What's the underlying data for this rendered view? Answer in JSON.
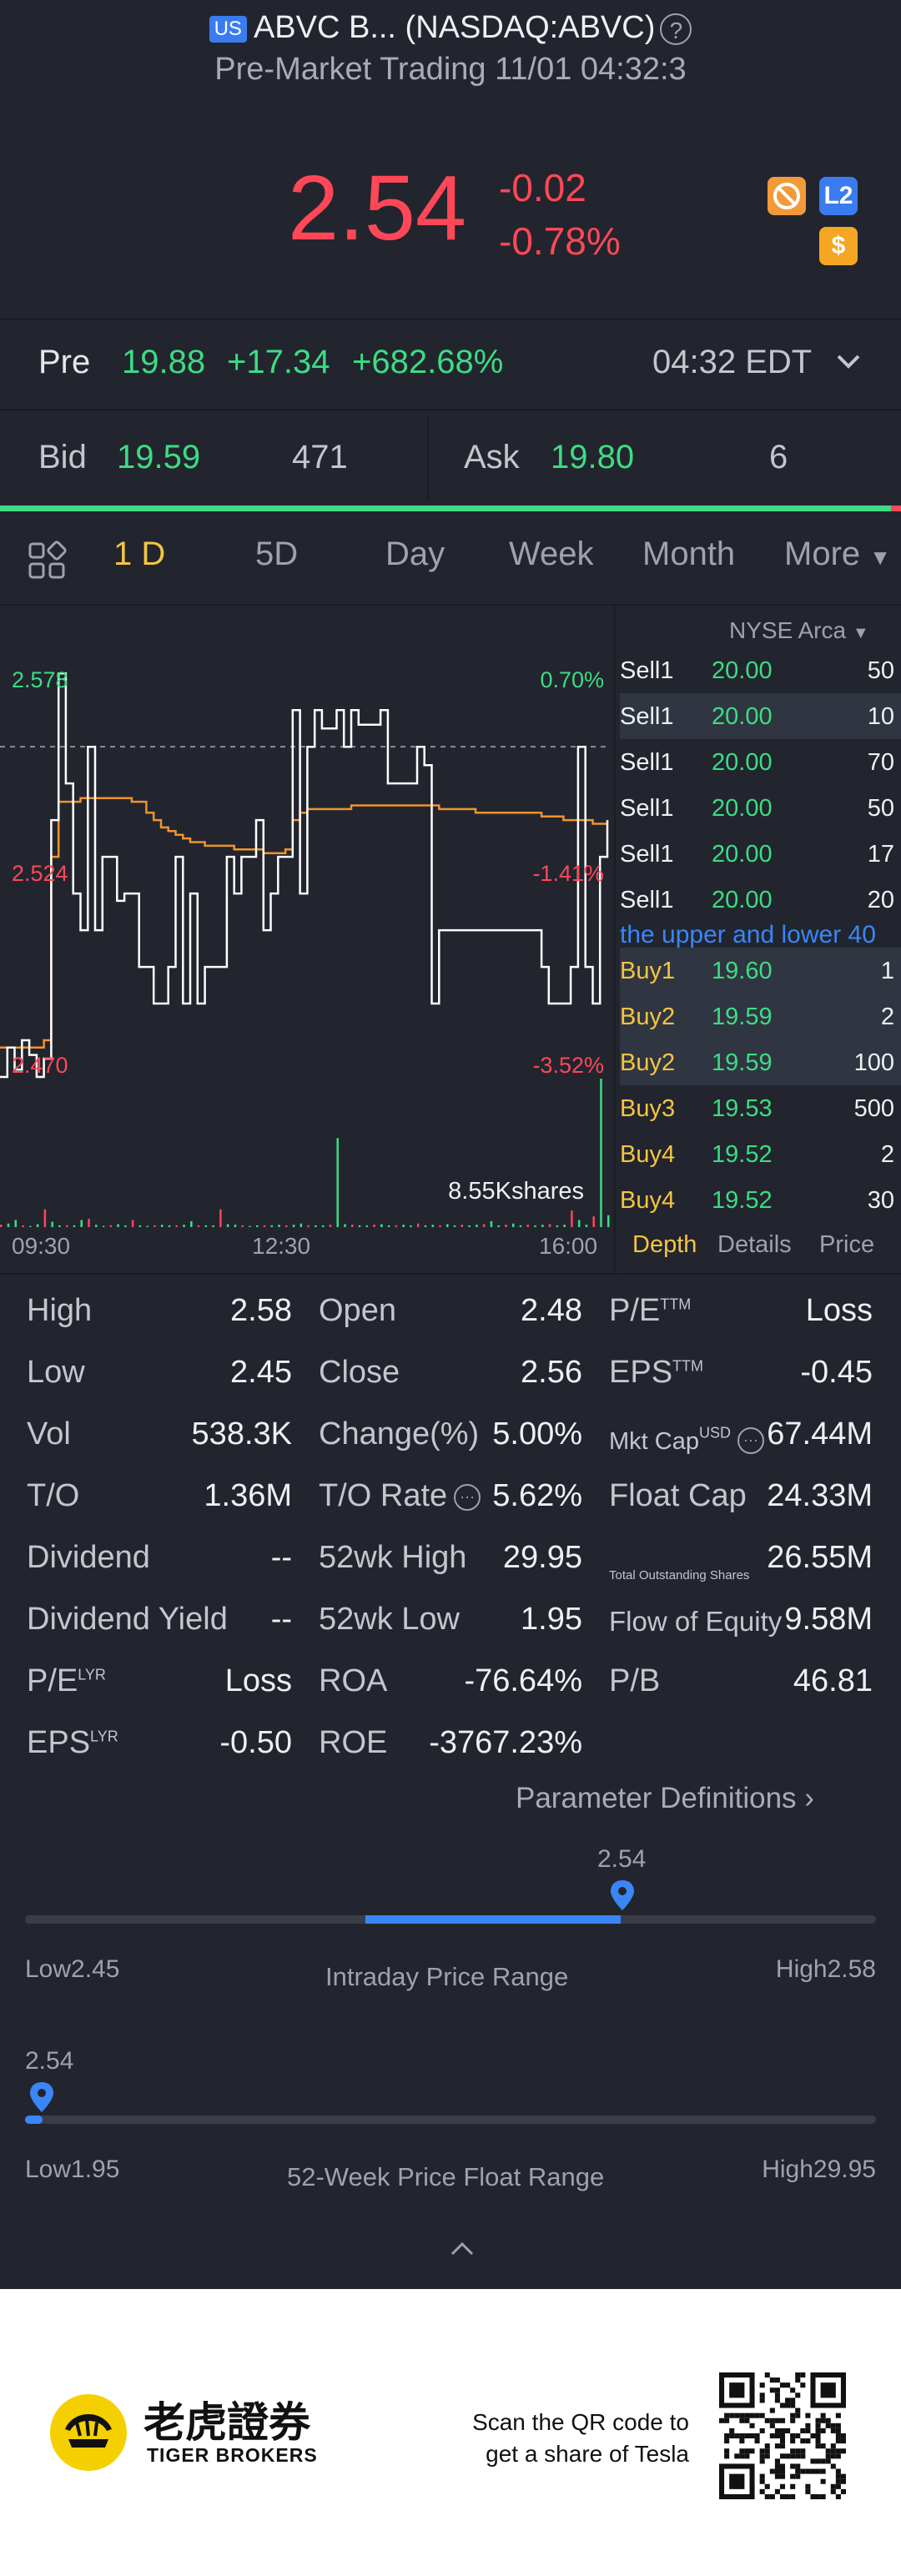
{
  "header": {
    "market_badge": "US",
    "title": "ABVC B... (NASDAQ:ABVC)",
    "help_icon": "?",
    "subtitle": "Pre-Market Trading 11/01 04:32:3"
  },
  "quote": {
    "price": "2.54",
    "change": "-0.02",
    "change_pct": "-0.78%",
    "badges": [
      "no-fee-icon",
      "L2",
      "$"
    ],
    "l2_label": "L2",
    "dollar_label": "$"
  },
  "premarket": {
    "label": "Pre",
    "price": "19.88",
    "change": "+17.34",
    "change_pct": "+682.68%",
    "time": "04:32 EDT"
  },
  "bidask": {
    "bid_label": "Bid",
    "bid_price": "19.59",
    "bid_size": "471",
    "ask_label": "Ask",
    "ask_price": "19.80",
    "ask_size": "6"
  },
  "tabs": [
    "1 D",
    "5D",
    "Day",
    "Week",
    "Month",
    "More"
  ],
  "chart_data": {
    "type": "line",
    "y_labels": {
      "top": "2.578",
      "mid": "2.524",
      "bottom": "2.470"
    },
    "pct_labels": {
      "top": "0.70%",
      "mid": "-1.41%",
      "bottom": "-3.52%"
    },
    "x_labels": [
      "09:30",
      "12:30",
      "16:00"
    ],
    "volume_label": "8.55Kshares",
    "ylim": [
      2.47,
      2.578
    ],
    "prev_close": 2.56,
    "price_series": [
      2.47,
      2.478,
      2.472,
      2.48,
      2.476,
      2.47,
      2.475,
      2.54,
      2.58,
      2.55,
      2.52,
      2.51,
      2.56,
      2.51,
      2.53,
      2.53,
      2.518,
      2.52,
      2.52,
      2.5,
      2.5,
      2.49,
      2.49,
      2.5,
      2.53,
      2.49,
      2.52,
      2.49,
      2.5,
      2.5,
      2.5,
      2.53,
      2.52,
      2.53,
      2.53,
      2.54,
      2.51,
      2.52,
      2.53,
      2.53,
      2.57,
      2.52,
      2.56,
      2.57,
      2.565,
      2.565,
      2.57,
      2.56,
      2.57,
      2.566,
      2.566,
      2.566,
      2.57,
      2.55,
      2.55,
      2.55,
      2.55,
      2.56,
      2.555,
      2.49,
      2.51,
      2.51,
      2.51,
      2.51,
      2.51,
      2.51,
      2.51,
      2.51,
      2.51,
      2.51,
      2.51,
      2.51,
      2.51,
      2.51,
      2.5,
      2.49,
      2.49,
      2.49,
      2.5,
      2.56,
      2.5,
      2.49,
      2.53,
      2.54
    ],
    "avg_series": [
      2.478,
      2.478,
      2.478,
      2.478,
      2.478,
      2.478,
      2.48,
      2.53,
      2.545,
      2.545,
      2.545,
      2.546,
      2.546,
      2.546,
      2.546,
      2.546,
      2.546,
      2.546,
      2.545,
      2.545,
      2.542,
      2.54,
      2.538,
      2.537,
      2.536,
      2.535,
      2.534,
      2.534,
      2.533,
      2.533,
      2.533,
      2.533,
      2.532,
      2.532,
      2.532,
      2.532,
      2.531,
      2.531,
      2.531,
      2.532,
      2.54,
      2.542,
      2.543,
      2.543,
      2.543,
      2.543,
      2.543,
      2.543,
      2.544,
      2.544,
      2.544,
      2.544,
      2.544,
      2.544,
      2.544,
      2.544,
      2.544,
      2.544,
      2.544,
      2.544,
      2.543,
      2.543,
      2.543,
      2.543,
      2.543,
      2.542,
      2.542,
      2.542,
      2.542,
      2.542,
      2.542,
      2.542,
      2.542,
      2.542,
      2.541,
      2.541,
      2.541,
      2.54,
      2.54,
      2.54,
      2.54,
      2.539,
      2.539,
      2.539
    ]
  },
  "orderbook": {
    "exchange": "NYSE Arca",
    "rows": [
      {
        "label": "Sell1",
        "price": "20.00",
        "size": "50",
        "hl": false
      },
      {
        "label": "Sell1",
        "price": "20.00",
        "size": "10",
        "hl": true
      },
      {
        "label": "Sell1",
        "price": "20.00",
        "size": "70",
        "hl": false
      },
      {
        "label": "Sell1",
        "price": "20.00",
        "size": "50",
        "hl": false
      },
      {
        "label": "Sell1",
        "price": "20.00",
        "size": "17",
        "hl": false
      },
      {
        "label": "Sell1",
        "price": "20.00",
        "size": "20",
        "hl": false
      }
    ],
    "notice": "the upper and lower 40",
    "buy_rows": [
      {
        "label": "Buy1",
        "price": "19.60",
        "size": "1",
        "hl": true
      },
      {
        "label": "Buy2",
        "price": "19.59",
        "size": "2",
        "hl": true
      },
      {
        "label": "Buy2",
        "price": "19.59",
        "size": "100",
        "hl": true
      },
      {
        "label": "Buy3",
        "price": "19.53",
        "size": "500",
        "hl": false
      },
      {
        "label": "Buy4",
        "price": "19.52",
        "size": "2",
        "hl": false
      },
      {
        "label": "Buy4",
        "price": "19.52",
        "size": "30",
        "hl": false
      }
    ],
    "tabs": [
      "Depth",
      "Details",
      "Price"
    ]
  },
  "stats": {
    "col1": [
      {
        "label": "High",
        "value": "2.58"
      },
      {
        "label": "Low",
        "value": "2.45"
      },
      {
        "label": "Vol",
        "value": "538.3K"
      },
      {
        "label": "T/O",
        "value": "1.36M"
      },
      {
        "label": "Dividend",
        "value": "--"
      },
      {
        "label": "Dividend Yield",
        "value": "--"
      },
      {
        "label": "P/E",
        "sup": "LYR",
        "value": "Loss"
      },
      {
        "label": "EPS",
        "sup": "LYR",
        "value": "-0.50"
      }
    ],
    "col2": [
      {
        "label": "Open",
        "value": "2.48"
      },
      {
        "label": "Close",
        "value": "2.56"
      },
      {
        "label": "Change(%)",
        "value": "5.00%"
      },
      {
        "label": "T/O Rate",
        "value": "5.62%"
      },
      {
        "label": "52wk High",
        "value": "29.95"
      },
      {
        "label": "52wk Low",
        "value": "1.95"
      },
      {
        "label": "ROA",
        "value": "-76.64%"
      },
      {
        "label": "ROE",
        "value": "-3767.23%"
      }
    ],
    "col3": [
      {
        "label": "P/E",
        "sup": "TTM",
        "value": "Loss"
      },
      {
        "label": "EPS",
        "sup": "TTM",
        "value": "-0.45"
      },
      {
        "label": "Mkt Cap",
        "sup": "USD",
        "value": "67.44M"
      },
      {
        "label": "Float Cap",
        "value": "24.33M"
      },
      {
        "label": "Total Outstanding Shares",
        "value": "26.55M"
      },
      {
        "label": "Flow of Equity",
        "value": "9.58M"
      },
      {
        "label": "P/B",
        "value": "46.81"
      }
    ],
    "param_link": "Parameter Definitions"
  },
  "intraday_range": {
    "current": "2.54",
    "low": "Low2.45",
    "high": "High2.58",
    "title": "Intraday Price Range",
    "fill_from": 0.4,
    "fill_to": 0.7
  },
  "week52_range": {
    "current": "2.54",
    "low": "Low1.95",
    "high": "High29.95",
    "title": "52-Week Price Float Range",
    "position": 0.021
  },
  "footer": {
    "brand_cn": "老虎證券",
    "brand_en": "TIGER BROKERS",
    "cta_line1": "Scan the QR code to",
    "cta_line2": "get a share of Tesla"
  }
}
